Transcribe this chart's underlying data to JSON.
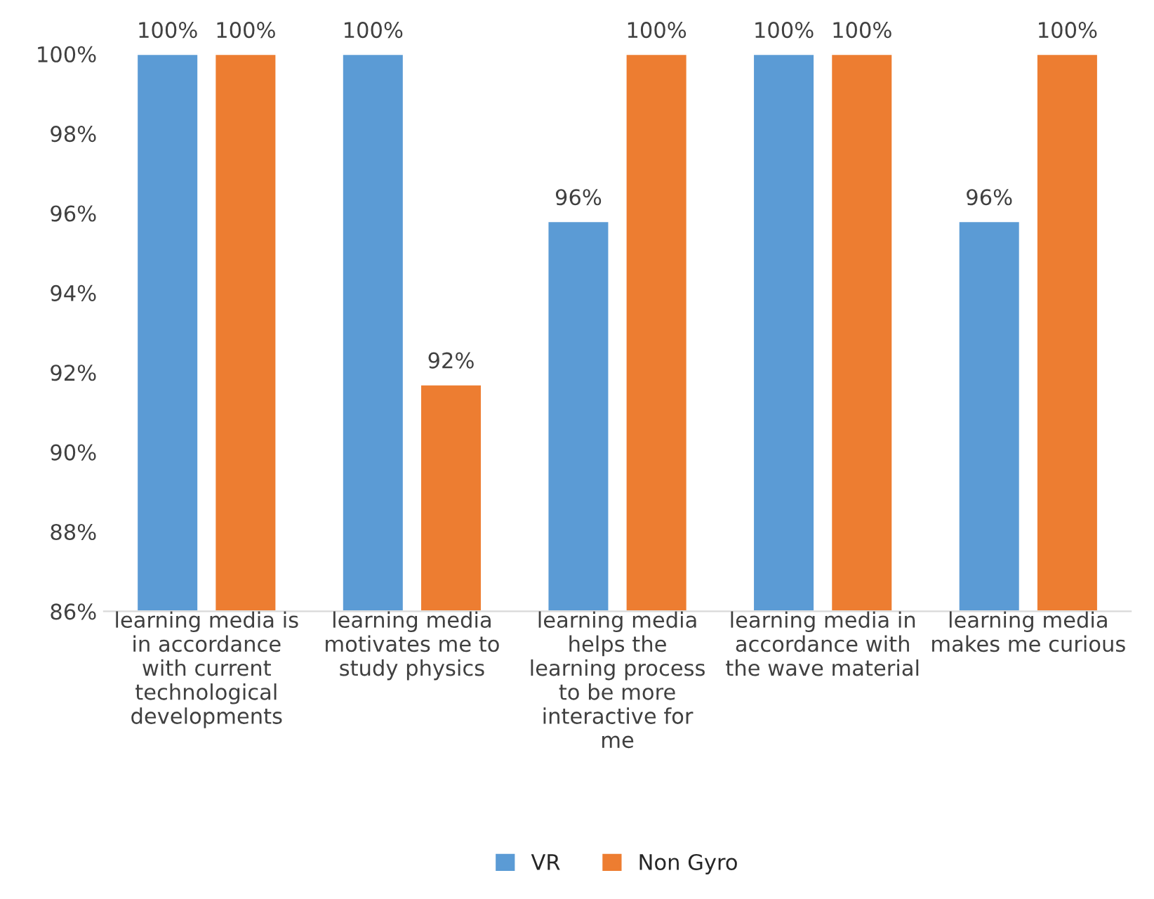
{
  "chart_data": {
    "type": "bar",
    "categories": [
      "learning media is in accordance with current technological developments",
      "learning media motivates me to study physics",
      "learning media helps the learning process to be more interactive for me",
      "learning media in accordance with the wave material",
      "learning media makes me curious"
    ],
    "series": [
      {
        "name": "VR",
        "color": "#5b9bd5",
        "values": [
          100,
          100,
          95.8,
          100,
          95.8
        ],
        "value_labels": [
          "100%",
          "100%",
          "96%",
          "100%",
          "96%"
        ]
      },
      {
        "name": "Non Gyro",
        "color": "#ed7d31",
        "values": [
          100,
          91.7,
          100,
          100,
          100
        ],
        "value_labels": [
          "100%",
          "92%",
          "100%",
          "100%",
          "100%"
        ]
      }
    ],
    "ylim": [
      86,
      100
    ],
    "yticks": [
      {
        "value": 86,
        "label": "86%"
      },
      {
        "value": 88,
        "label": "88%"
      },
      {
        "value": 90,
        "label": "90%"
      },
      {
        "value": 92,
        "label": "92%"
      },
      {
        "value": 94,
        "label": "94%"
      },
      {
        "value": 96,
        "label": "96%"
      },
      {
        "value": 98,
        "label": "98%"
      },
      {
        "value": 100,
        "label": "100%"
      }
    ],
    "legend": "bottom",
    "grid": false
  }
}
